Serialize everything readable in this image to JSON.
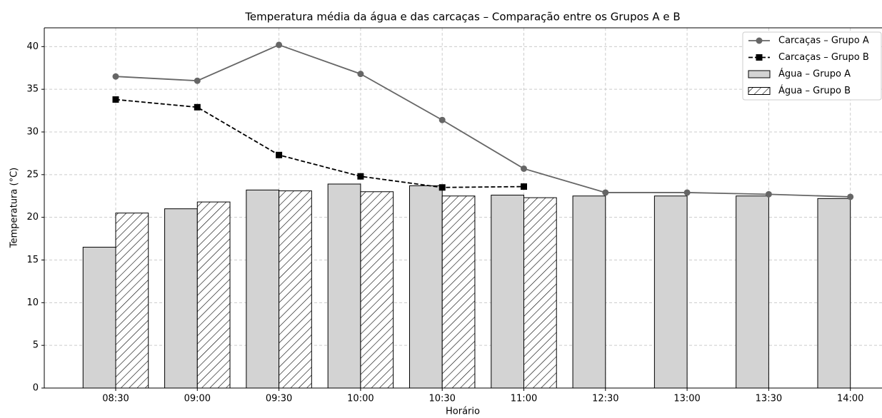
{
  "chart_data": {
    "type": "bar_line",
    "title": "Temperatura média da água e das carcaças – Comparação entre os Grupos A e B",
    "x_label": "Horário",
    "y_label": "Temperatura (°C)",
    "categories": [
      "08:30",
      "09:00",
      "09:30",
      "10:00",
      "10:30",
      "11:00",
      "12:30",
      "13:00",
      "13:30",
      "14:00"
    ],
    "series": [
      {
        "name": "Carcaças – Grupo A",
        "kind": "line",
        "color": "#666666",
        "marker": "circle",
        "values": [
          36.5,
          36.0,
          40.2,
          36.8,
          31.4,
          25.7,
          22.9,
          22.9,
          22.7,
          22.4
        ]
      },
      {
        "name": "Carcaças – Grupo B",
        "kind": "line",
        "color": "#000000",
        "marker": "square",
        "dashed": true,
        "values": [
          33.8,
          32.9,
          27.3,
          24.8,
          23.5,
          23.6,
          null,
          null,
          null,
          null
        ]
      },
      {
        "name": "Água – Grupo A",
        "kind": "bar",
        "color": "#d3d3d3",
        "values": [
          16.5,
          21.0,
          23.2,
          23.9,
          23.7,
          22.6,
          22.5,
          22.5,
          22.5,
          22.2
        ]
      },
      {
        "name": "Água – Grupo B",
        "kind": "bar",
        "color": "#ffffff",
        "hatch": true,
        "values": [
          20.5,
          21.8,
          23.1,
          23.0,
          22.5,
          22.3,
          null,
          null,
          null,
          null
        ]
      }
    ],
    "ylim": [
      0,
      42.2
    ],
    "yticks": [
      0,
      5,
      10,
      15,
      20,
      25,
      30,
      35,
      40
    ],
    "grid": true,
    "legend": "upper right"
  }
}
